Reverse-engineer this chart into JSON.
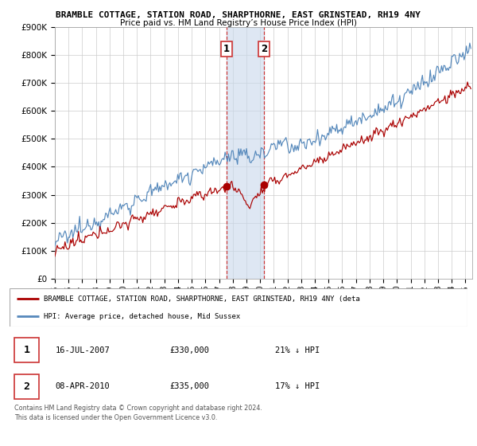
{
  "title": "BRAMBLE COTTAGE, STATION ROAD, SHARPTHORNE, EAST GRINSTEAD, RH19 4NY",
  "subtitle": "Price paid vs. HM Land Registry’s House Price Index (HPI)",
  "ylim": [
    0,
    900000
  ],
  "yticks": [
    0,
    100000,
    200000,
    300000,
    400000,
    500000,
    600000,
    700000,
    800000,
    900000
  ],
  "ytick_labels": [
    "£0",
    "£100K",
    "£200K",
    "£300K",
    "£400K",
    "£500K",
    "£600K",
    "£700K",
    "£800K",
    "£900K"
  ],
  "xlim_start": 1995.0,
  "xlim_end": 2025.5,
  "hpi_color": "#5588bb",
  "price_color": "#aa0000",
  "transaction1": {
    "date_num": 2007.54,
    "price": 330000,
    "label": "1",
    "date_str": "16-JUL-2007",
    "pct": "21%",
    "direction": "↓"
  },
  "transaction2": {
    "date_num": 2010.27,
    "price": 335000,
    "label": "2",
    "date_str": "08-APR-2010",
    "pct": "17%",
    "direction": "↓"
  },
  "shade_color": "#c8d8eb",
  "legend_line1": "BRAMBLE COTTAGE, STATION ROAD, SHARPTHORNE, EAST GRINSTEAD, RH19 4NY (deta",
  "legend_line2": "HPI: Average price, detached house, Mid Sussex",
  "footer": "Contains HM Land Registry data © Crown copyright and database right 2024.\nThis data is licensed under the Open Government Licence v3.0.",
  "background_color": "#ffffff",
  "grid_color": "#cccccc"
}
